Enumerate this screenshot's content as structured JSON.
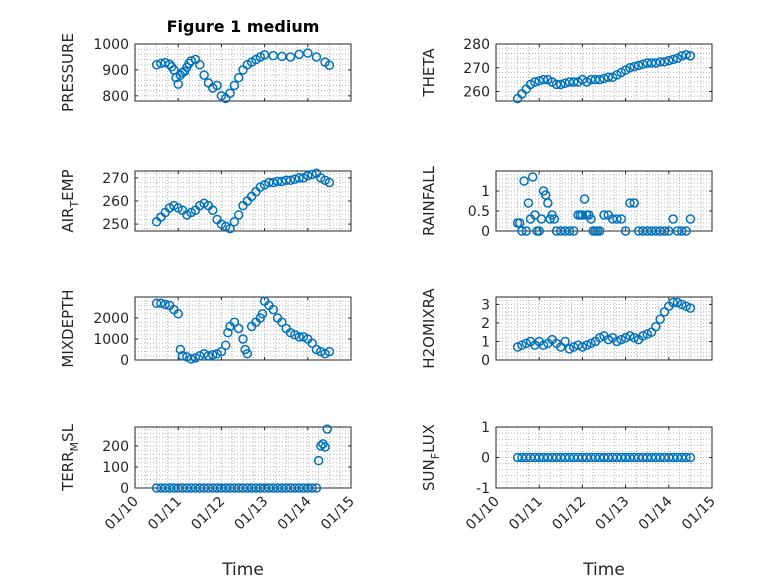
{
  "figure": {
    "title": "Figure 1 medium",
    "marker_color": "#0072BD",
    "axis_color": "#262626",
    "grid": true,
    "x_tick_labels": [
      "01/10",
      "01/11",
      "01/12",
      "01/13",
      "01/14",
      "01/15"
    ],
    "xlabel": "Time"
  },
  "chart_data": [
    {
      "type": "scatter",
      "ylabel": "PRESSURE",
      "ylabel_sub": "",
      "ylabel_tail": "",
      "title": "Figure 1 medium",
      "ylim": [
        780,
        1000
      ],
      "yticks": [
        800,
        900,
        1000
      ],
      "show_xticks": false,
      "x": [
        10.5,
        10.6,
        10.7,
        10.8,
        10.85,
        10.9,
        10.95,
        11.0,
        11.05,
        11.1,
        11.15,
        11.2,
        11.25,
        11.3,
        11.4,
        11.5,
        11.6,
        11.7,
        11.8,
        11.9,
        12.0,
        12.1,
        12.2,
        12.3,
        12.4,
        12.5,
        12.6,
        12.7,
        12.8,
        12.9,
        13.0,
        13.2,
        13.4,
        13.6,
        13.8,
        14.0,
        14.2,
        14.4,
        14.5
      ],
      "y": [
        920,
        925,
        928,
        922,
        912,
        900,
        870,
        845,
        880,
        890,
        895,
        910,
        925,
        935,
        940,
        920,
        880,
        850,
        830,
        840,
        800,
        790,
        810,
        840,
        870,
        900,
        920,
        930,
        940,
        950,
        958,
        955,
        952,
        950,
        960,
        965,
        950,
        930,
        918
      ]
    },
    {
      "type": "scatter",
      "ylabel": "THETA",
      "ylabel_sub": "",
      "ylabel_tail": "",
      "title": "",
      "ylim": [
        256,
        280
      ],
      "yticks": [
        260,
        270,
        280
      ],
      "show_xticks": false,
      "x": [
        10.5,
        10.6,
        10.7,
        10.8,
        10.9,
        11.0,
        11.1,
        11.2,
        11.3,
        11.4,
        11.5,
        11.6,
        11.7,
        11.8,
        11.9,
        12.0,
        12.1,
        12.2,
        12.3,
        12.4,
        12.5,
        12.6,
        12.7,
        12.8,
        12.9,
        13.0,
        13.1,
        13.2,
        13.3,
        13.4,
        13.5,
        13.6,
        13.7,
        13.8,
        13.9,
        14.0,
        14.1,
        14.2,
        14.3,
        14.4,
        14.5
      ],
      "y": [
        257,
        259,
        261,
        263,
        264,
        264.5,
        265,
        265,
        264,
        263,
        263,
        263.5,
        264,
        264,
        264,
        265,
        264,
        265,
        265,
        265,
        265.5,
        266,
        266,
        267,
        268,
        269,
        270,
        270.5,
        271,
        271.5,
        272,
        272,
        272,
        272.5,
        272.5,
        273,
        273.5,
        274,
        275,
        275.5,
        275
      ]
    },
    {
      "type": "scatter",
      "ylabel": "AIR",
      "ylabel_sub": "T",
      "ylabel_tail": "EMP",
      "title": "",
      "ylim": [
        247,
        273
      ],
      "yticks": [
        250,
        260,
        270
      ],
      "show_xticks": false,
      "x": [
        10.5,
        10.6,
        10.7,
        10.8,
        10.9,
        11.0,
        11.1,
        11.2,
        11.3,
        11.4,
        11.5,
        11.6,
        11.7,
        11.8,
        11.9,
        12.0,
        12.1,
        12.2,
        12.3,
        12.4,
        12.5,
        12.6,
        12.7,
        12.8,
        12.9,
        13.0,
        13.1,
        13.2,
        13.3,
        13.4,
        13.5,
        13.6,
        13.7,
        13.8,
        13.9,
        14.0,
        14.1,
        14.2,
        14.3,
        14.4,
        14.5
      ],
      "y": [
        251,
        253,
        255,
        257,
        258,
        257,
        256,
        254,
        255,
        256,
        258,
        259,
        258,
        256,
        252,
        250,
        249,
        248,
        251,
        254,
        258,
        260,
        262,
        264,
        266,
        267,
        268,
        268,
        268.5,
        268.5,
        269,
        269,
        269.5,
        270,
        270,
        271,
        271.5,
        272,
        270,
        269,
        268
      ]
    },
    {
      "type": "scatter",
      "ylabel": "RAINFALL",
      "ylabel_sub": "",
      "ylabel_tail": "",
      "title": "",
      "ylim": [
        0,
        1.5
      ],
      "yticks": [
        0,
        0.5,
        1
      ],
      "show_xticks": false,
      "x": [
        10.5,
        10.55,
        10.6,
        10.65,
        10.7,
        10.75,
        10.8,
        10.85,
        10.9,
        10.95,
        11.0,
        11.05,
        11.1,
        11.15,
        11.2,
        11.25,
        11.3,
        11.35,
        11.4,
        11.5,
        11.6,
        11.7,
        11.8,
        11.9,
        11.95,
        12.0,
        12.05,
        12.1,
        12.15,
        12.2,
        12.25,
        12.3,
        12.35,
        12.4,
        12.5,
        12.6,
        12.7,
        12.8,
        12.9,
        13.0,
        13.1,
        13.2,
        13.3,
        13.4,
        13.5,
        13.6,
        13.7,
        13.8,
        13.9,
        14.0,
        14.1,
        14.2,
        14.3,
        14.4,
        14.5
      ],
      "y": [
        0.2,
        0.2,
        0,
        1.25,
        0,
        0.7,
        0.3,
        1.35,
        0.4,
        0,
        0,
        0.3,
        1.0,
        0.9,
        0.7,
        0.3,
        0.4,
        0.3,
        0,
        0,
        0,
        0,
        0,
        0.4,
        0.4,
        0.4,
        0.8,
        0.4,
        0.4,
        0.3,
        0,
        0,
        0,
        0,
        0.4,
        0.4,
        0.3,
        0.3,
        0.3,
        0,
        0.7,
        0.7,
        0,
        0,
        0,
        0,
        0,
        0,
        0,
        0,
        0.3,
        0,
        0,
        0,
        0.3
      ]
    },
    {
      "type": "scatter",
      "ylabel": "MIXDEPTH",
      "ylabel_sub": "",
      "ylabel_tail": "",
      "title": "",
      "ylim": [
        0,
        3000
      ],
      "yticks": [
        0,
        1000,
        2000
      ],
      "show_xticks": false,
      "x": [
        10.5,
        10.6,
        10.7,
        10.8,
        10.9,
        11.0,
        11.05,
        11.1,
        11.2,
        11.3,
        11.4,
        11.5,
        11.6,
        11.7,
        11.8,
        11.9,
        12.0,
        12.1,
        12.15,
        12.2,
        12.3,
        12.4,
        12.5,
        12.55,
        12.6,
        12.7,
        12.8,
        12.9,
        12.95,
        13.0,
        13.1,
        13.2,
        13.3,
        13.4,
        13.5,
        13.6,
        13.7,
        13.8,
        13.9,
        14.0,
        14.1,
        14.2,
        14.3,
        14.4,
        14.5
      ],
      "y": [
        2700,
        2700,
        2650,
        2600,
        2400,
        2200,
        500,
        200,
        150,
        50,
        100,
        200,
        300,
        200,
        250,
        300,
        400,
        700,
        1300,
        1600,
        1800,
        1500,
        1000,
        500,
        300,
        1600,
        1800,
        2000,
        2200,
        2800,
        2600,
        2400,
        2000,
        1800,
        1500,
        1300,
        1200,
        1100,
        1100,
        1000,
        800,
        500,
        400,
        300,
        400
      ]
    },
    {
      "type": "scatter",
      "ylabel": "H2OMIXRA",
      "ylabel_sub": "",
      "ylabel_tail": "",
      "title": "",
      "ylim": [
        0,
        3.4
      ],
      "yticks": [
        0,
        1,
        2,
        3
      ],
      "show_xticks": false,
      "x": [
        10.5,
        10.6,
        10.7,
        10.8,
        10.9,
        11.0,
        11.1,
        11.2,
        11.3,
        11.4,
        11.5,
        11.6,
        11.7,
        11.8,
        11.9,
        12.0,
        12.1,
        12.2,
        12.3,
        12.4,
        12.5,
        12.6,
        12.7,
        12.8,
        12.9,
        13.0,
        13.1,
        13.2,
        13.3,
        13.4,
        13.5,
        13.6,
        13.7,
        13.8,
        13.9,
        14.0,
        14.1,
        14.2,
        14.3,
        14.4,
        14.5
      ],
      "y": [
        0.7,
        0.8,
        0.9,
        1.0,
        0.8,
        1.0,
        0.8,
        0.9,
        1.1,
        0.9,
        0.7,
        1.0,
        0.6,
        0.7,
        0.8,
        0.7,
        0.8,
        0.9,
        1.0,
        1.2,
        1.3,
        1.1,
        1.2,
        1.0,
        1.1,
        1.2,
        1.3,
        1.2,
        1.1,
        1.3,
        1.4,
        1.5,
        1.8,
        2.2,
        2.6,
        2.9,
        3.1,
        3.1,
        3.0,
        2.9,
        2.8
      ]
    },
    {
      "type": "scatter",
      "ylabel": "TERR",
      "ylabel_sub": "M",
      "ylabel_tail": "SL",
      "title": "",
      "ylim": [
        0,
        290
      ],
      "yticks": [
        0,
        100,
        200
      ],
      "show_xticks": true,
      "x": [
        10.5,
        10.6,
        10.7,
        10.8,
        10.9,
        11.0,
        11.1,
        11.2,
        11.3,
        11.4,
        11.5,
        11.6,
        11.7,
        11.8,
        11.9,
        12.0,
        12.1,
        12.2,
        12.3,
        12.4,
        12.5,
        12.6,
        12.7,
        12.8,
        12.9,
        13.0,
        13.1,
        13.2,
        13.3,
        13.4,
        13.5,
        13.6,
        13.7,
        13.8,
        13.9,
        14.0,
        14.1,
        14.2,
        14.25,
        14.3,
        14.35,
        14.4,
        14.45
      ],
      "y": [
        0,
        0,
        0,
        0,
        0,
        0,
        0,
        0,
        0,
        0,
        0,
        0,
        0,
        0,
        0,
        0,
        0,
        0,
        0,
        0,
        0,
        0,
        0,
        0,
        0,
        0,
        0,
        0,
        0,
        0,
        0,
        0,
        0,
        0,
        0,
        0,
        0,
        0,
        130,
        200,
        210,
        195,
        280
      ]
    },
    {
      "type": "scatter",
      "ylabel": "SUN",
      "ylabel_sub": "F",
      "ylabel_tail": "LUX",
      "title": "",
      "ylim": [
        -1,
        1
      ],
      "yticks": [
        -1,
        0,
        1
      ],
      "show_xticks": true,
      "x": [
        10.5,
        10.6,
        10.7,
        10.8,
        10.9,
        11.0,
        11.1,
        11.2,
        11.3,
        11.4,
        11.5,
        11.6,
        11.7,
        11.8,
        11.9,
        12.0,
        12.1,
        12.2,
        12.3,
        12.4,
        12.5,
        12.6,
        12.7,
        12.8,
        12.9,
        13.0,
        13.1,
        13.2,
        13.3,
        13.4,
        13.5,
        13.6,
        13.7,
        13.8,
        13.9,
        14.0,
        14.1,
        14.2,
        14.3,
        14.4,
        14.5
      ],
      "y": [
        0,
        0,
        0,
        0,
        0,
        0,
        0,
        0,
        0,
        0,
        0,
        0,
        0,
        0,
        0,
        0,
        0,
        0,
        0,
        0,
        0,
        0,
        0,
        0,
        0,
        0,
        0,
        0,
        0,
        0,
        0,
        0,
        0,
        0,
        0,
        0,
        0,
        0,
        0,
        0,
        0
      ]
    }
  ]
}
